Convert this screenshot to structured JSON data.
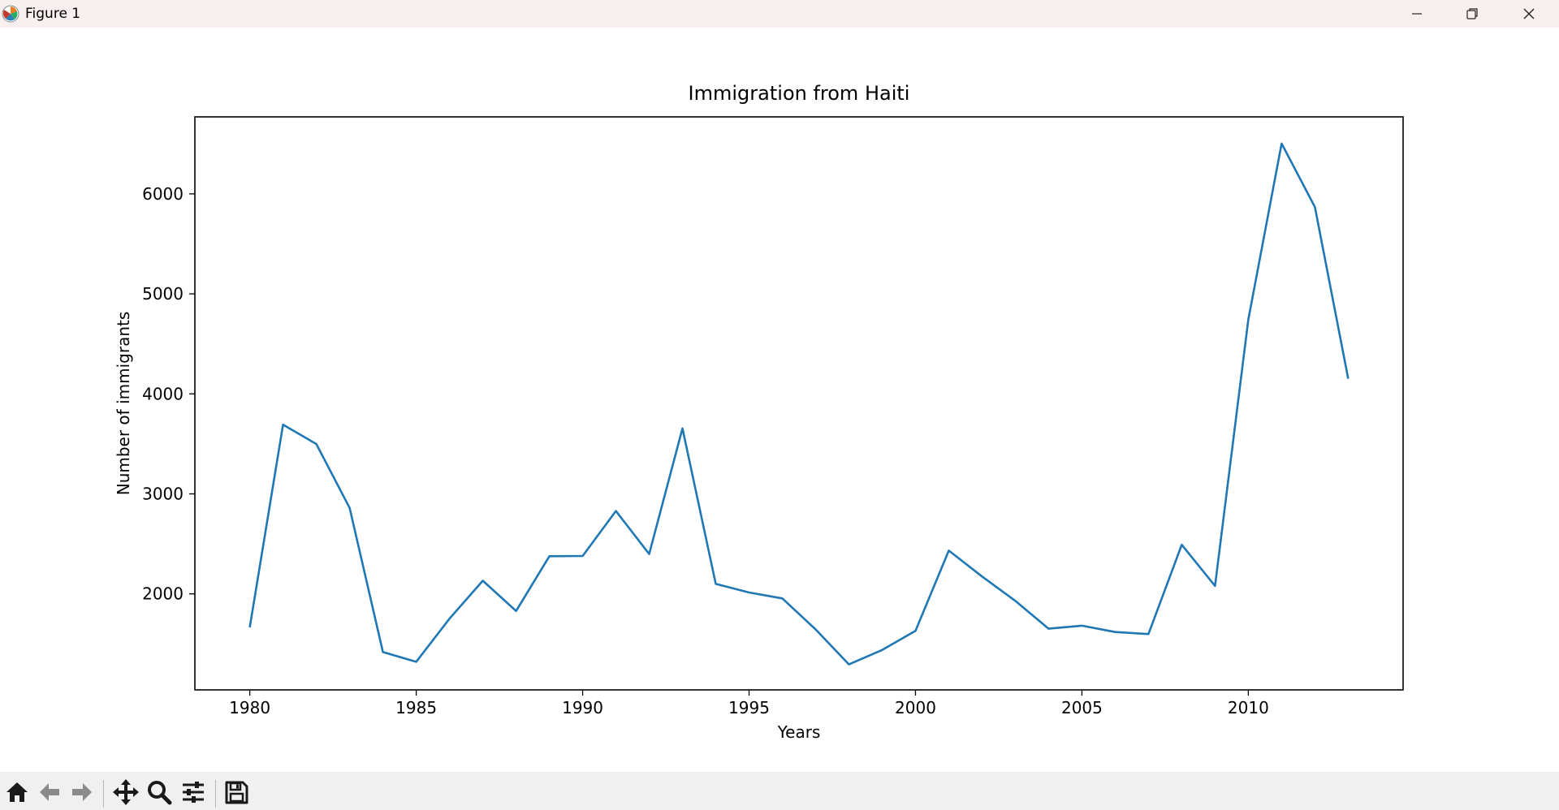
{
  "window": {
    "title": "Figure 1",
    "controls": [
      "minimize-icon",
      "restore-icon",
      "close-icon"
    ]
  },
  "toolbar": {
    "tools": [
      "home-icon",
      "back-arrow-icon",
      "forward-arrow-icon",
      "pan-icon",
      "zoom-icon",
      "configure-subplots-icon",
      "save-icon"
    ]
  },
  "chart_data": {
    "type": "line",
    "title": "Immigration from Haiti",
    "xlabel": "Years",
    "ylabel": "Number of immigrants",
    "xlim": [
      1978.35,
      2014.65
    ],
    "ylim": [
      1040,
      6770
    ],
    "xticks": [
      1980,
      1985,
      1990,
      1995,
      2000,
      2005,
      2010
    ],
    "yticks": [
      2000,
      3000,
      4000,
      5000,
      6000
    ],
    "grid": false,
    "line_color": "#1f77b4",
    "series": [
      {
        "x": [
          1980,
          1981,
          1982,
          1983,
          1984,
          1985,
          1986,
          1987,
          1988,
          1989,
          1990,
          1991,
          1992,
          1993,
          1994,
          1995,
          1996,
          1997,
          1998,
          1999,
          2000,
          2001,
          2002,
          2003,
          2004,
          2005,
          2006,
          2007,
          2008,
          2009,
          2010,
          2011,
          2012,
          2013
        ],
        "values": [
          1666,
          3692,
          3498,
          2860,
          1418,
          1321,
          1753,
          2132,
          1829,
          2377,
          2379,
          2829,
          2399,
          3655,
          2100,
          2014,
          1955,
          1645,
          1295,
          1439,
          1631,
          2433,
          2174,
          1930,
          1652,
          1682,
          1619,
          1598,
          2491,
          2080,
          4744,
          6503,
          5868,
          4152
        ]
      }
    ]
  }
}
